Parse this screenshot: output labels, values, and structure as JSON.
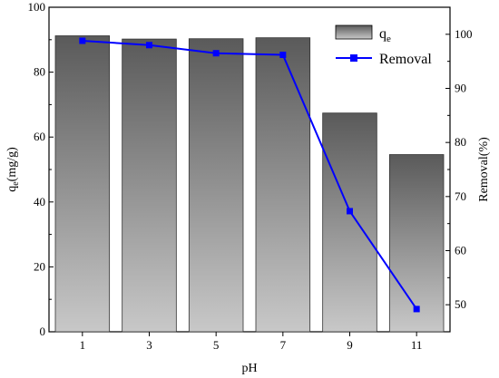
{
  "chart_data": {
    "type": "bar",
    "categories": [
      "1",
      "3",
      "5",
      "7",
      "9",
      "11"
    ],
    "xlabel": "pH",
    "ylabel_left": {
      "main": "q",
      "sub": "e",
      "rest": "(mg/g)"
    },
    "ylabel_right": "Removal(%)",
    "ylim_left": [
      0,
      100
    ],
    "ylim_right": [
      45,
      105
    ],
    "yticks_left": [
      0,
      20,
      40,
      60,
      80,
      100
    ],
    "yticks_right": [
      50,
      60,
      70,
      80,
      90,
      100
    ],
    "series": [
      {
        "name": "qe",
        "name_main": "q",
        "name_sub": "e",
        "type": "bar",
        "axis": "left",
        "values": [
          91.2,
          90.2,
          90.3,
          90.6,
          67.4,
          54.6
        ]
      },
      {
        "name": "Removal",
        "type": "line",
        "axis": "right",
        "values": [
          98.8,
          98.0,
          96.5,
          96.2,
          67.3,
          49.2
        ]
      }
    ],
    "legend_position": "top-right",
    "colors": {
      "bar_top": "#5a5a5a",
      "bar_bottom": "#c8c8c8",
      "line": "#0000ff",
      "marker": "#0000ff"
    }
  }
}
